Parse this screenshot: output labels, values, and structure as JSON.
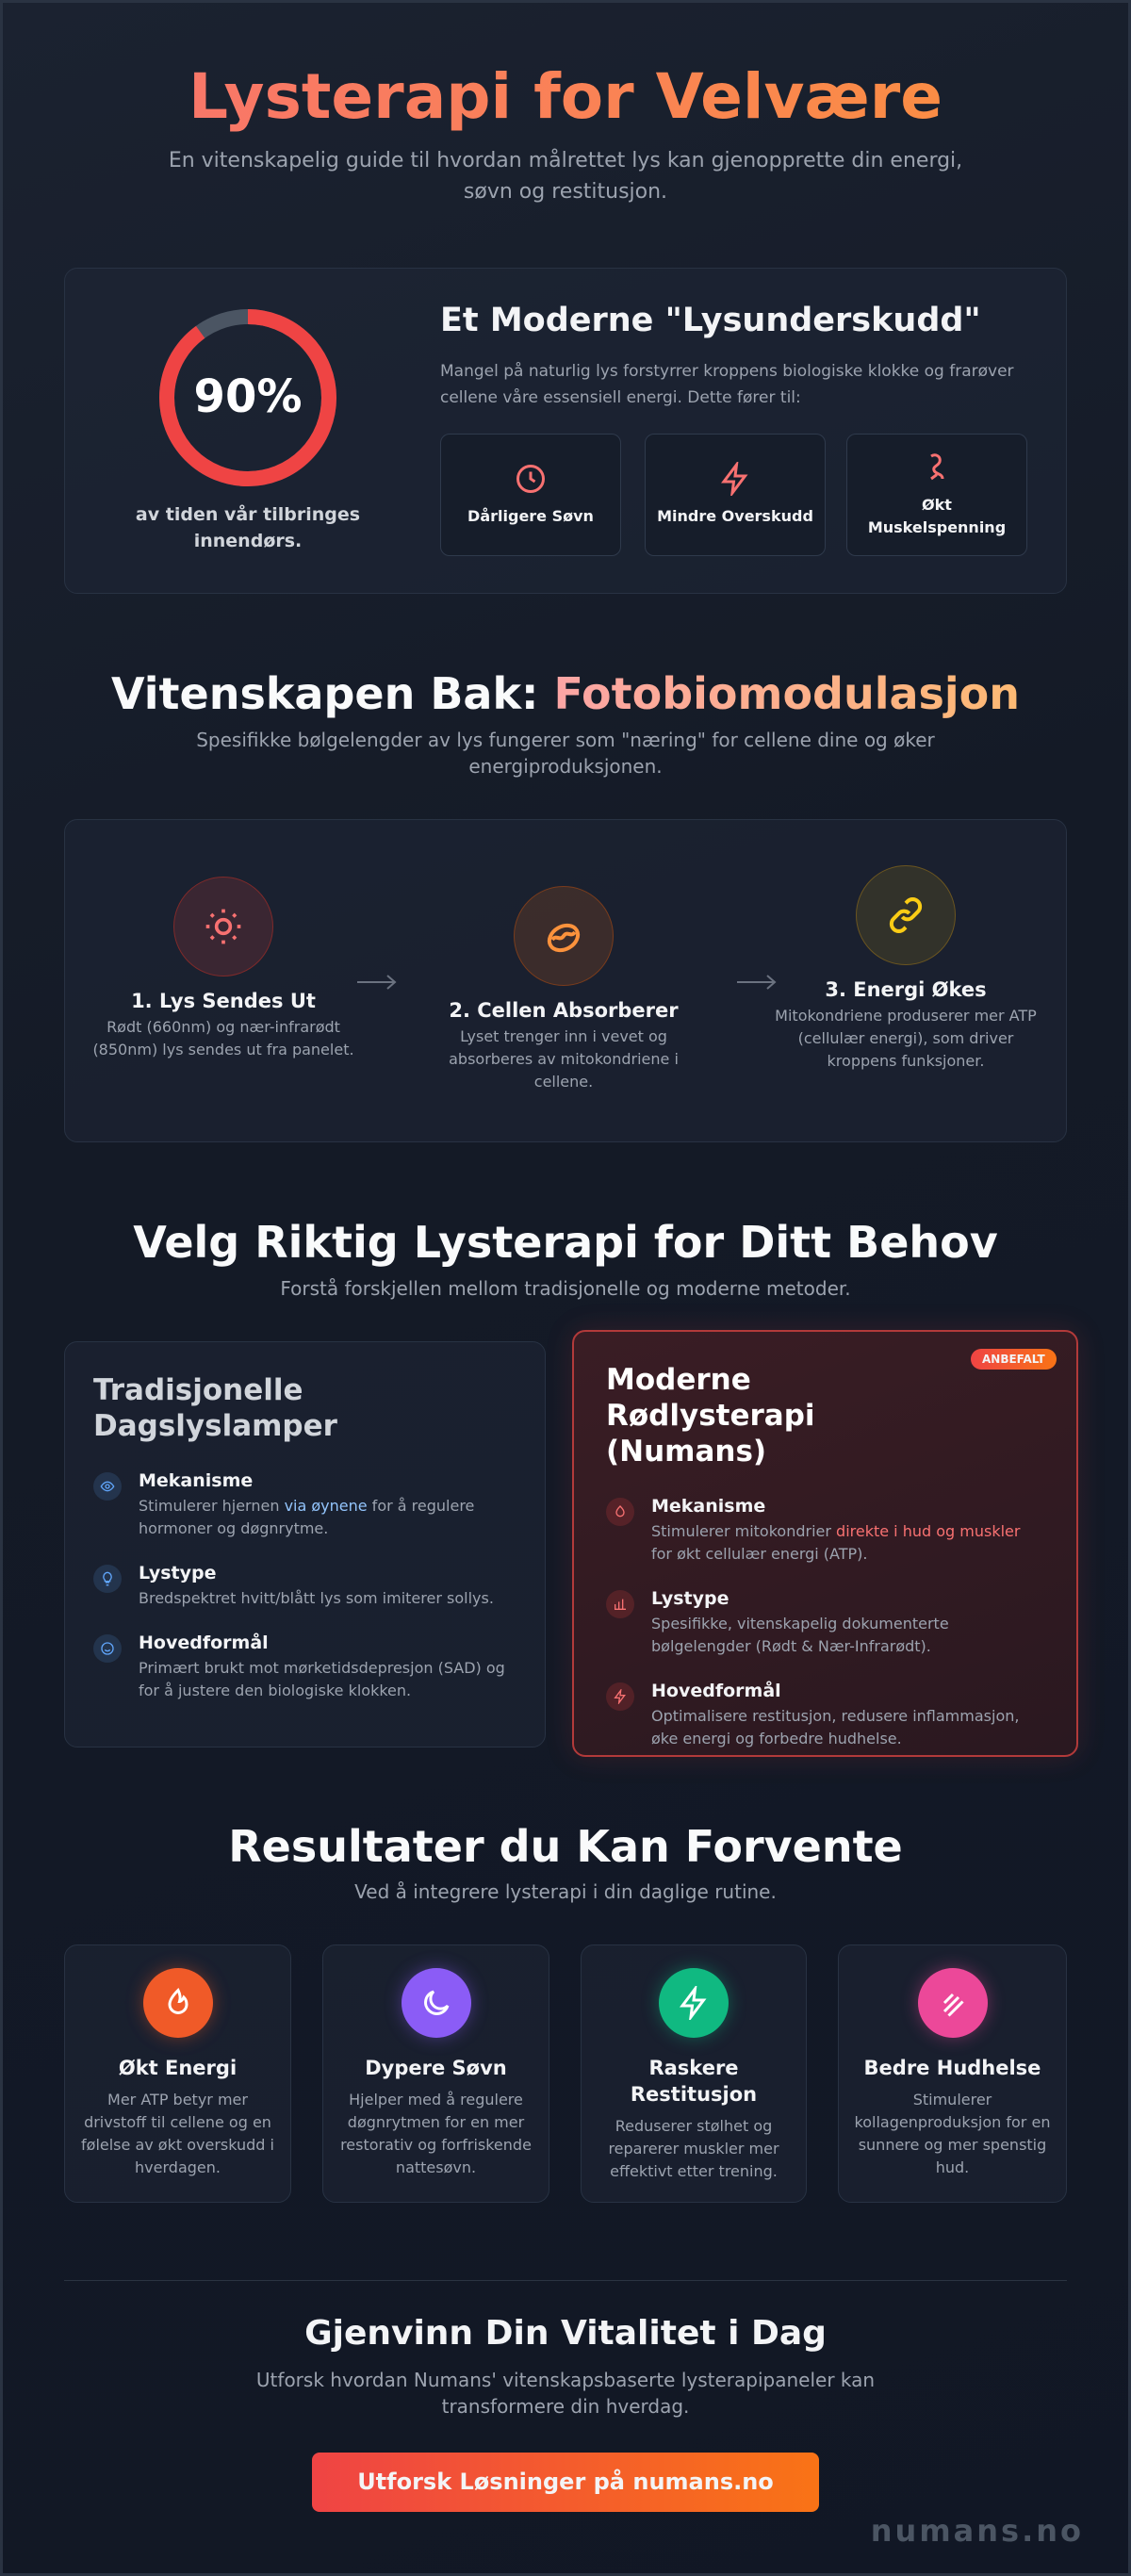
{
  "header": {
    "title": "Lysterapi for Velvære",
    "subtitle": "En vitenskapelig guide til hvordan målrettet lys kan gjenopprette din energi, søvn og restitusjon."
  },
  "deficit": {
    "stat": {
      "value": 90,
      "label": "90%"
    },
    "stat_caption": "av tiden vår tilbringes innendørs.",
    "title": "Et Moderne \"Lysunderskudd\"",
    "text": "Mangel på naturlig lys forstyrrer kroppens biologiske klokke og frarøver cellene våre essensiell energi. Dette fører til:",
    "effects": [
      "Dårligere Søvn",
      "Mindre Overskudd",
      "Økt Muskelspenning"
    ]
  },
  "science": {
    "title": [
      "Vitenskapen Bak: ",
      "Fotobiomodulasjon"
    ],
    "subtitle": "Spesifikke bølgelengder av lys fungerer som \"næring\" for cellene dine og øker energiproduksjonen.",
    "steps": [
      {
        "title": "1. Lys Sendes Ut",
        "text": "Rødt (660nm) og nær-infrarødt (850nm) lys sendes ut fra panelet."
      },
      {
        "title": "2. Cellen Absorberer",
        "text": "Lyset trenger inn i vevet og absorberes av mitokondriene i cellene."
      },
      {
        "title": "3. Energi Økes",
        "text": "Mitokondriene produserer mer ATP (cellulær energi), som driver kroppens funksjoner."
      }
    ]
  },
  "comparison": {
    "title": "Velg Riktig Lysterapi for Ditt Behov",
    "subtitle": "Forstå forskjellen mellom tradisjonelle og moderne metoder.",
    "badge": "ANBEFALT",
    "cards": [
      {
        "title": "Tradisjonelle Dagslyslamper",
        "items": [
          {
            "label": "Mekanisme",
            "text": [
              "Stimulerer hjernen ",
              "via øynene",
              " for å regulere hormoner og døgnrytme."
            ]
          },
          {
            "label": "Lystype",
            "text": [
              "Bredspektret hvitt/blått lys som imiterer sollys."
            ]
          },
          {
            "label": "Hovedformål",
            "text": [
              "Primært brukt mot mørketidsdepresjon (SAD) og for å justere den biologiske klokken."
            ]
          }
        ]
      },
      {
        "title": "Moderne Rødlysterapi (Numans)",
        "items": [
          {
            "label": "Mekanisme",
            "text": [
              "Stimulerer mitokondrier ",
              "direkte i hud og muskler",
              " for økt cellulær energi (ATP)."
            ]
          },
          {
            "label": "Lystype",
            "text": [
              "Spesifikke, vitenskapelig dokumenterte bølgelengder (Rødt & Nær-Infrarødt)."
            ]
          },
          {
            "label": "Hovedformål",
            "text": [
              "Optimalisere restitusjon, redusere inflammasjon, øke energi og forbedre hudhelse."
            ]
          }
        ]
      }
    ]
  },
  "results": {
    "title": "Resultater du Kan Forvente",
    "subtitle": "Ved å integrere lysterapi i din daglige rutine.",
    "items": [
      {
        "title": "Økt Energi",
        "text": "Mer ATP betyr mer drivstoff til cellene og en følelse av økt overskudd i hverdagen."
      },
      {
        "title": "Dypere Søvn",
        "text": "Hjelper med å regulere døgnrytmen for en mer restorativ og forfriskende nattesøvn."
      },
      {
        "title": "Raskere Restitusjon",
        "text": "Reduserer stølhet og reparerer muskler mer effektivt etter trening."
      },
      {
        "title": "Bedre Hudhelse",
        "text": "Stimulerer kollagenproduksjon for en sunnere og mer spenstig hud."
      }
    ]
  },
  "cta": {
    "title": "Gjenvinn Din Vitalitet i Dag",
    "text": "Utforsk hvordan Numans' vitenskapsbaserte lysterapipaneler kan transformere din hverdag.",
    "button": "Utforsk Løsninger på numans.no",
    "brand": "numans.no"
  }
}
